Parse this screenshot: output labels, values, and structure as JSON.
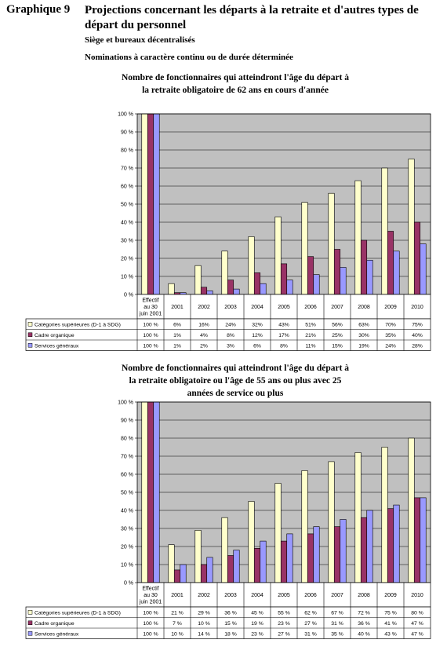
{
  "header": {
    "graph_number": "Graphique 9",
    "title": "Projections concernant les départs à la retraite et d'autres types de départ du personnel",
    "subtitle1": "Siège et bureaux décentralisés",
    "subtitle2": "Nominations à caractère continu ou de durée déterminée"
  },
  "colors": {
    "cat_sup": "#ffffcc",
    "cadre": "#993366",
    "services": "#9999ff",
    "plot_bg": "#c0c0c0"
  },
  "chart_data": [
    {
      "type": "bar",
      "title": "Nombre de fonctionnaires qui atteindront l'âge du départ à la retraite obligatoire de 62 ans en cours d'année",
      "title_lines": [
        "Nombre de fonctionnaires qui atteindront l'âge du départ à",
        "la retraite obligatoire de 62 ans en cours d'année"
      ],
      "categories": [
        "Effectif au 30 juin 2001",
        "2001",
        "2002",
        "2003",
        "2004",
        "2005",
        "2006",
        "2007",
        "2008",
        "2009",
        "2010"
      ],
      "category_lines": [
        [
          "Effectif",
          "au 30",
          "juin 2001"
        ],
        [
          "2001"
        ],
        [
          "2002"
        ],
        [
          "2003"
        ],
        [
          "2004"
        ],
        [
          "2005"
        ],
        [
          "2006"
        ],
        [
          "2007"
        ],
        [
          "2008"
        ],
        [
          "2009"
        ],
        [
          "2010"
        ]
      ],
      "yticks": [
        "100 %",
        "90 %",
        "80 %",
        "70 %",
        "60 %",
        "50 %",
        "40 %",
        "30 %",
        "20 %",
        "10 %",
        "0 %"
      ],
      "ylim": [
        0,
        100
      ],
      "series": [
        {
          "name": "Catégories supérieures (D-1 à SDG)",
          "values": [
            100,
            6,
            16,
            24,
            32,
            43,
            51,
            56,
            63,
            70,
            75
          ],
          "labels": [
            "100 %",
            "6%",
            "16%",
            "24%",
            "32%",
            "43%",
            "51%",
            "56%",
            "63%",
            "70%",
            "75%"
          ]
        },
        {
          "name": "Cadre organique",
          "values": [
            100,
            1,
            4,
            8,
            12,
            17,
            21,
            25,
            30,
            35,
            40
          ],
          "labels": [
            "100 %",
            "1%",
            "4%",
            "8%",
            "12%",
            "17%",
            "21%",
            "25%",
            "30%",
            "35%",
            "40%"
          ]
        },
        {
          "name": "Services généraux",
          "values": [
            100,
            1,
            2,
            3,
            6,
            8,
            11,
            15,
            19,
            24,
            28
          ],
          "labels": [
            "100 %",
            "1%",
            "2%",
            "3%",
            "6%",
            "8%",
            "11%",
            "15%",
            "19%",
            "24%",
            "28%"
          ]
        }
      ]
    },
    {
      "type": "bar",
      "title": "Nombre de fonctionnaires qui atteindront l'âge du départ à la retraite obligatoire ou l'âge de 55 ans ou plus avec 25 années de service ou plus",
      "title_lines": [
        "Nombre de fonctionnaires qui atteindront l'âge du départ à",
        "la retraite obligatoire ou l'âge de 55 ans ou plus avec 25",
        "années de service ou plus"
      ],
      "categories": [
        "Effectif au 30 juin 2001",
        "2001",
        "2002",
        "2003",
        "2004",
        "2005",
        "2006",
        "2007",
        "2008",
        "2009",
        "2010"
      ],
      "category_lines": [
        [
          "Effectif",
          "au 30",
          "juin 2001"
        ],
        [
          "2001"
        ],
        [
          "2002"
        ],
        [
          "2003"
        ],
        [
          "2004"
        ],
        [
          "2005"
        ],
        [
          "2006"
        ],
        [
          "2007"
        ],
        [
          "2008"
        ],
        [
          "2009"
        ],
        [
          "2010"
        ]
      ],
      "yticks": [
        "100 %",
        "90 %",
        "80 %",
        "70 %",
        "60 %",
        "50 %",
        "40 %",
        "30 %",
        "20 %",
        "10 %",
        "0 %"
      ],
      "ylim": [
        0,
        100
      ],
      "series": [
        {
          "name": "Catégories supérieures (D-1 à SDG)",
          "values": [
            100,
            21,
            29,
            36,
            45,
            55,
            62,
            67,
            72,
            75,
            80
          ],
          "labels": [
            "100 %",
            "21 %",
            "29 %",
            "36 %",
            "45 %",
            "55 %",
            "62 %",
            "67 %",
            "72 %",
            "75 %",
            "80 %"
          ]
        },
        {
          "name": "Cadre organique",
          "values": [
            100,
            7,
            10,
            15,
            19,
            23,
            27,
            31,
            36,
            41,
            47
          ],
          "labels": [
            "100 %",
            "7 %",
            "10 %",
            "15 %",
            "19 %",
            "23 %",
            "27 %",
            "31 %",
            "36 %",
            "41 %",
            "47 %"
          ]
        },
        {
          "name": "Services généraux",
          "values": [
            100,
            10,
            14,
            18,
            23,
            27,
            31,
            35,
            40,
            43,
            47
          ],
          "labels": [
            "100 %",
            "10 %",
            "14 %",
            "18 %",
            "23 %",
            "27 %",
            "31 %",
            "35 %",
            "40 %",
            "43 %",
            "47 %"
          ]
        }
      ]
    }
  ]
}
